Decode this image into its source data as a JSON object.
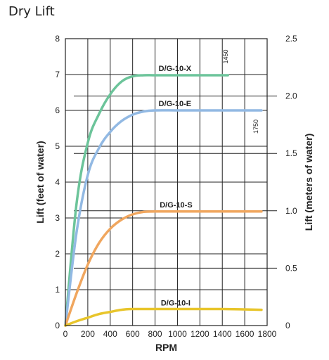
{
  "page": {
    "title": "Dry Lift"
  },
  "chart_data": {
    "type": "line",
    "title": "Dry Lift",
    "xlabel": "RPM",
    "ylabel_left": "Lift (feet of water)",
    "ylabel_right": "Lift (meters of water)",
    "xlim": [
      0,
      1800
    ],
    "ylim_left": [
      0,
      8
    ],
    "ylim_right": [
      0,
      2.5
    ],
    "x_ticks": [
      0,
      200,
      400,
      600,
      800,
      1000,
      1200,
      1400,
      1600,
      1800
    ],
    "y_ticks_left": [
      0,
      1,
      2,
      3,
      4,
      5,
      6,
      7,
      8
    ],
    "y_ticks_right": [
      "0",
      "0.5",
      "1.0",
      "1.5",
      "2.0",
      "2.5"
    ],
    "y_ticks_right_values": [
      0,
      0.5,
      1.0,
      1.5,
      2.0,
      2.5
    ],
    "grid": true,
    "series": [
      {
        "name": "D/G-10-X",
        "color": "#6cc49a",
        "x": [
          0,
          100,
          200,
          300,
          400,
          500,
          600,
          700,
          800,
          1000,
          1200,
          1450
        ],
        "y": [
          0,
          3.4,
          5.1,
          5.9,
          6.45,
          6.8,
          6.95,
          6.98,
          6.98,
          6.98,
          6.98,
          6.98
        ]
      },
      {
        "name": "D/G-10-E",
        "color": "#92b9e3",
        "x": [
          0,
          100,
          200,
          300,
          400,
          500,
          600,
          700,
          800,
          1000,
          1200,
          1400,
          1750
        ],
        "y": [
          0,
          2.6,
          4.2,
          4.95,
          5.4,
          5.7,
          5.88,
          5.97,
          6.0,
          6.0,
          6.0,
          6.0,
          6.0
        ]
      },
      {
        "name": "D/G-10-S",
        "color": "#f0a65e",
        "x": [
          0,
          100,
          200,
          300,
          400,
          500,
          600,
          700,
          800,
          1000,
          1200,
          1400,
          1750
        ],
        "y": [
          0,
          0.9,
          1.7,
          2.3,
          2.7,
          2.95,
          3.1,
          3.17,
          3.18,
          3.18,
          3.18,
          3.18,
          3.18
        ]
      },
      {
        "name": "D/G-10-I",
        "color": "#e8c52b",
        "x": [
          0,
          100,
          200,
          300,
          400,
          500,
          600,
          700,
          800,
          1000,
          1200,
          1400,
          1750
        ],
        "y": [
          0,
          0.12,
          0.22,
          0.32,
          0.38,
          0.44,
          0.46,
          0.46,
          0.46,
          0.46,
          0.46,
          0.46,
          0.44
        ]
      }
    ],
    "annotations": [
      {
        "text": "1450",
        "x": 1450,
        "y": 7.5
      },
      {
        "text": "1750",
        "x": 1720,
        "y": 5.55
      }
    ]
  }
}
